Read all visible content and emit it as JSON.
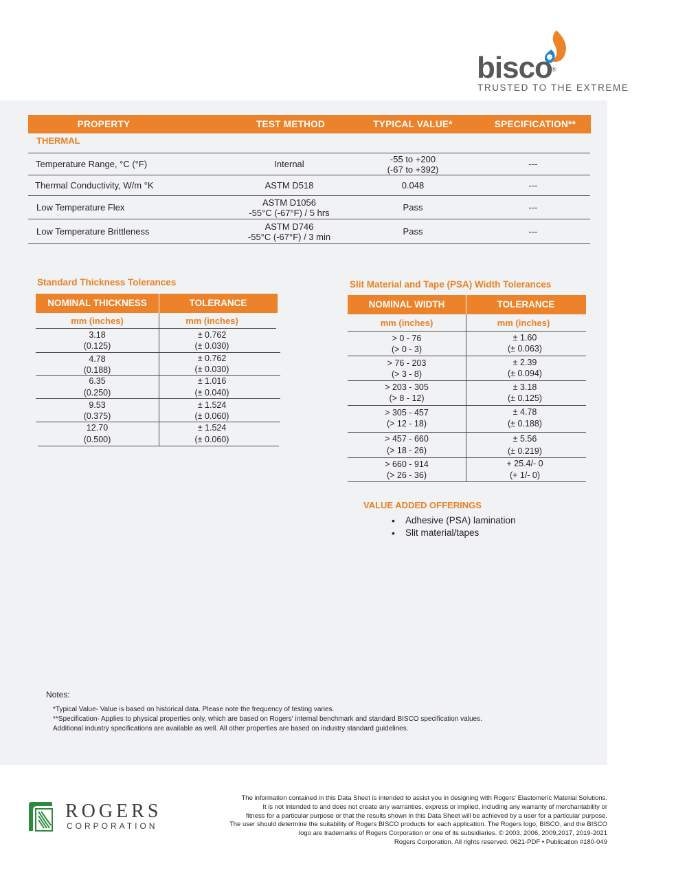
{
  "header": {
    "logo_text": "bisco",
    "logo_reg": "®",
    "tagline": "TRUSTED TO THE EXTREME"
  },
  "main_table": {
    "headers": [
      "PROPERTY",
      "TEST METHOD",
      "TYPICAL VALUE*",
      "SPECIFICATION**"
    ],
    "section": "THERMAL",
    "rows": [
      {
        "property": "Temperature Range,  °C (°F)",
        "method": [
          "Internal"
        ],
        "value": [
          "-55 to +200",
          "(-67 to +392)"
        ],
        "spec": "---"
      },
      {
        "property": "Thermal Conductivity,  W/m °K",
        "method": [
          "ASTM D518"
        ],
        "value": [
          "0.048"
        ],
        "spec": "---"
      },
      {
        "property": "Low Temperature Flex",
        "method": [
          "ASTM D1056",
          "-55°C (-67°F) / 5 hrs"
        ],
        "value": [
          "Pass"
        ],
        "spec": "---"
      },
      {
        "property": "Low Temperature Brittleness",
        "method": [
          "ASTM D746",
          "-55°C (-67°F) / 3 min"
        ],
        "value": [
          "Pass"
        ],
        "spec": "---"
      }
    ]
  },
  "thickness_table": {
    "title": "Standard Thickness Tolerances",
    "headers": [
      "NOMINAL THICKNESS",
      "TOLERANCE"
    ],
    "units": [
      "mm (inches)",
      "mm (inches)"
    ],
    "rows": [
      [
        [
          "3.18",
          "(0.125)"
        ],
        [
          "± 0.762",
          "(± 0.030)"
        ]
      ],
      [
        [
          "4.78",
          "(0.188)"
        ],
        [
          "± 0.762",
          "(± 0.030)"
        ]
      ],
      [
        [
          "6.35",
          "(0.250)"
        ],
        [
          "± 1.016",
          "(± 0.040)"
        ]
      ],
      [
        [
          "9.53",
          "(0.375)"
        ],
        [
          "± 1.524",
          "(± 0.060)"
        ]
      ],
      [
        [
          "12.70",
          "(0.500)"
        ],
        [
          "± 1.524",
          "(± 0.060)"
        ]
      ]
    ]
  },
  "width_table": {
    "title": "Slit Material and Tape (PSA) Width Tolerances",
    "headers": [
      "NOMINAL WIDTH",
      "TOLERANCE"
    ],
    "units": [
      "mm (inches)",
      "mm (inches)"
    ],
    "rows": [
      [
        [
          "> 0 - 76",
          "(> 0 - 3)"
        ],
        [
          "± 1.60",
          "(± 0.063)"
        ]
      ],
      [
        [
          "> 76 - 203",
          "(> 3 - 8)"
        ],
        [
          "± 2.39",
          "(± 0.094)"
        ]
      ],
      [
        [
          "> 203 - 305",
          "(> 8 - 12)"
        ],
        [
          "± 3.18",
          "(± 0.125)"
        ]
      ],
      [
        [
          "> 305 - 457",
          "(> 12 - 18)"
        ],
        [
          "± 4.78",
          "(± 0.188)"
        ]
      ],
      [
        [
          "> 457 - 660",
          "(> 18 - 26)"
        ],
        [
          "± 5.56",
          "(± 0.219)"
        ]
      ],
      [
        [
          "> 660 - 914",
          "(> 26 - 36)"
        ],
        [
          "+ 25.4/- 0",
          "(+ 1/- 0)"
        ]
      ]
    ]
  },
  "value_added": {
    "title": "VALUE ADDED OFFERINGS",
    "items": [
      "Adhesive (PSA) lamination",
      "Slit material/tapes"
    ]
  },
  "notes": {
    "label": "Notes:",
    "lines": [
      "*Typical Value- Value is based on historical data.  Please note the frequency of testing varies.",
      "**Specification- Applies to physical properties only, which are based on Rogers' internal benchmark and standard BISCO specification values.",
      "Additional industry specifications are available as well.  All other properties are based on industry standard guidelines."
    ]
  },
  "footer": {
    "company": "ROGERS",
    "company_sub": "CORPORATION",
    "disclaimer": [
      "The information contained in this Data Sheet is intended to assist you in designing with Rogers' Elastomeric Material Solutions.",
      "It is not intended to and does not create any warranties, express or implied, including any warranty of merchantability or",
      "fitness for a particular purpose or that the results shown in this Data Sheet will be achieved by a user for a particular purpose.",
      "The user should determine the suitability of Rogers BISCO products for each application. The Rogers logo, BISCO, and the BISCO",
      "logo are trademarks of Rogers Corporation or one of its subsidiaries. © 2003, 2006, 2009,2017, 2019-2021",
      "Rogers Corporation.  All rights reserved. 0621-PDF • Publication #180-049"
    ]
  },
  "colors": {
    "accent": "#ec8229",
    "background": "#f1f2f4",
    "text": "#231f20"
  }
}
